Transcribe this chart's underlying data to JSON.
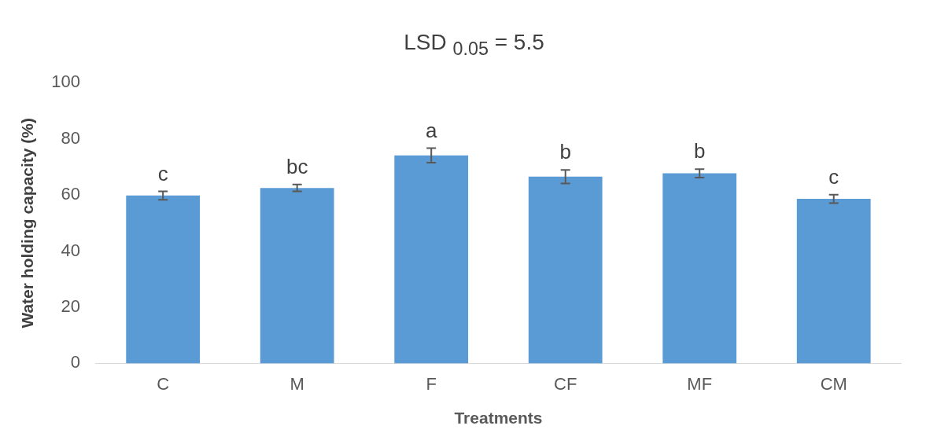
{
  "chart_data": {
    "type": "bar",
    "title": "LSD $_{0.05}$ = 5.5",
    "xlabel": "Treatments",
    "ylabel": "Water holding capacity (%)",
    "categories": [
      "C",
      "M",
      "F",
      "CF",
      "MF",
      "CM"
    ],
    "values": [
      59.8,
      62.5,
      74.1,
      66.5,
      67.7,
      58.6
    ],
    "errors": [
      1.5,
      1.2,
      2.6,
      2.4,
      1.5,
      1.5
    ],
    "color": "#5b9bd5",
    "ylim": [
      0,
      100
    ],
    "yticks": [
      0,
      20,
      40,
      60,
      80,
      100
    ],
    "grid": false,
    "annotations": [
      {
        "text": "c",
        "x": "C",
        "y": 61.3
      },
      {
        "text": "bc",
        "x": "M",
        "y": 63.7
      },
      {
        "text": "a",
        "x": "F",
        "y": 76.7
      },
      {
        "text": "b",
        "x": "CF",
        "y": 68.9
      },
      {
        "text": "b",
        "x": "MF",
        "y": 69.2
      },
      {
        "text": "c",
        "x": "CM",
        "y": 60.1
      }
    ]
  }
}
